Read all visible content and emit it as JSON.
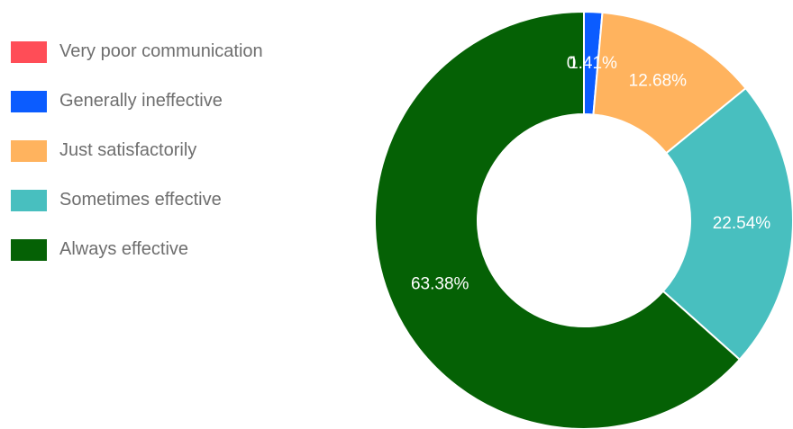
{
  "chart_data": {
    "type": "pie",
    "donut": true,
    "title": "",
    "legend_position": "left",
    "slices": [
      {
        "label": "Very poor communication",
        "value": 0.0,
        "value_label": "0",
        "color": "#ff4d57"
      },
      {
        "label": "Generally ineffective",
        "value": 1.41,
        "value_label": "1.41%",
        "color": "#0b5cff"
      },
      {
        "label": "Just satisfactorily",
        "value": 12.68,
        "value_label": "12.68%",
        "color": "#ffb35e"
      },
      {
        "label": "Sometimes effective",
        "value": 22.54,
        "value_label": "22.54%",
        "color": "#48bfbf"
      },
      {
        "label": "Always effective",
        "value": 63.38,
        "value_label": "63.38%",
        "color": "#056105"
      }
    ]
  }
}
